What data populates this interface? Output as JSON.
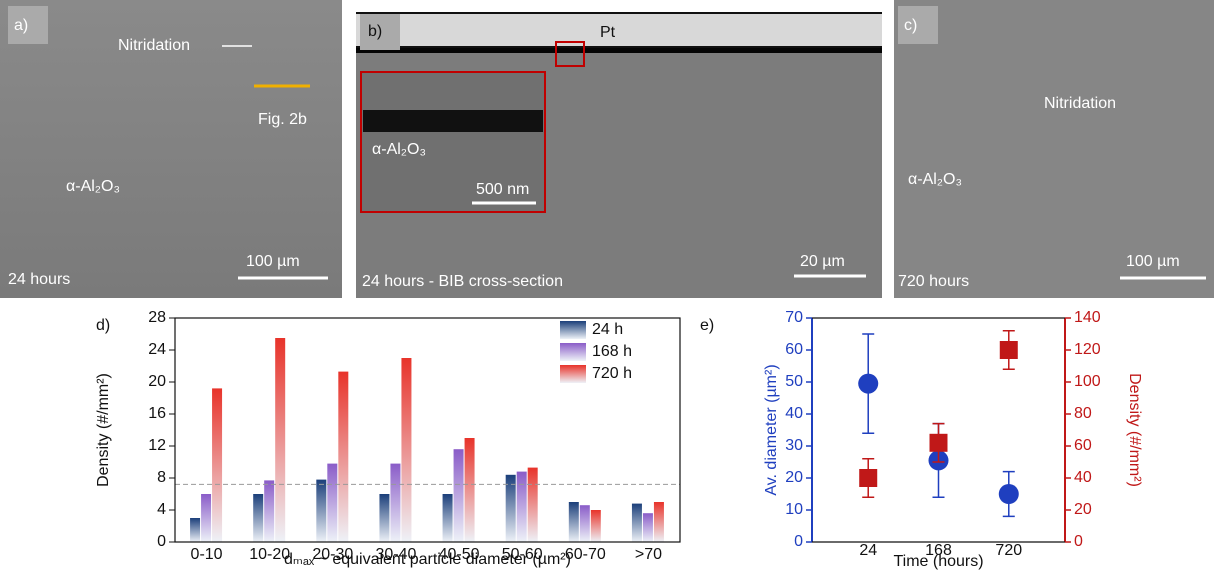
{
  "panels": {
    "a": {
      "label": "a)",
      "nitridation": "Nitridation",
      "fig_ref": "Fig. 2b",
      "phase": "α-Al₂O₃",
      "scale": "100 µm",
      "caption": "24 hours"
    },
    "b": {
      "label": "b)",
      "coating": "Pt",
      "phase": "α-Al₂O₃",
      "inset_scale": "500 nm",
      "caption": "24 hours - BIB cross-section",
      "scale": "20 µm"
    },
    "c": {
      "label": "c)",
      "nitridation": "Nitridation",
      "phase": "α-Al₂O₃",
      "scale": "100 µm",
      "caption": "720 hours"
    }
  },
  "chart_data": [
    {
      "type": "bar",
      "panel_label": "d)",
      "xlabel": "dₘₐₓ ~ equivalent particle diameter (µm²)",
      "ylabel": "Density (#/mm²)",
      "categories": [
        "0-10",
        "10-20",
        "20-30",
        "30-40",
        "40-50",
        "50-60",
        "60-70",
        ">70"
      ],
      "series": [
        {
          "name": "24 h",
          "color": "#1b3f7a",
          "values": [
            3,
            6,
            7.8,
            6,
            6,
            8.4,
            5,
            4.8
          ]
        },
        {
          "name": "168 h",
          "color": "#8a5cc8",
          "values": [
            6,
            7.7,
            9.8,
            9.8,
            11.6,
            8.8,
            4.6,
            3.6
          ]
        },
        {
          "name": "720 h",
          "color": "#e8332a",
          "values": [
            19.2,
            25.5,
            21.3,
            23,
            13,
            9.3,
            4,
            5
          ]
        }
      ],
      "hline": 7.2,
      "ylim": [
        0,
        28
      ],
      "yticks": [
        0,
        4,
        8,
        12,
        16,
        20,
        24,
        28
      ]
    },
    {
      "type": "errorscatter",
      "panel_label": "e)",
      "xlabel": "Time (hours)",
      "ylabel": "Av. diameter (µm²)",
      "y2label": "Density (#/mm²)",
      "categories": [
        "24",
        "168",
        "720"
      ],
      "series": [
        {
          "color": "#1f3fbf",
          "marker": "circle",
          "values": [
            49.5,
            25.5,
            15
          ],
          "errors": [
            15.5,
            11.5,
            7
          ]
        },
        {
          "color": "#c01818",
          "marker": "square",
          "axis": "y2",
          "values": [
            40,
            62,
            120
          ],
          "errors": [
            12,
            12,
            12
          ]
        }
      ],
      "ylim": [
        0,
        70
      ],
      "yticks": [
        0,
        10,
        20,
        30,
        40,
        50,
        60,
        70
      ],
      "y2lim": [
        0,
        140
      ],
      "y2ticks": [
        0,
        20,
        40,
        60,
        80,
        100,
        120,
        140
      ]
    }
  ]
}
